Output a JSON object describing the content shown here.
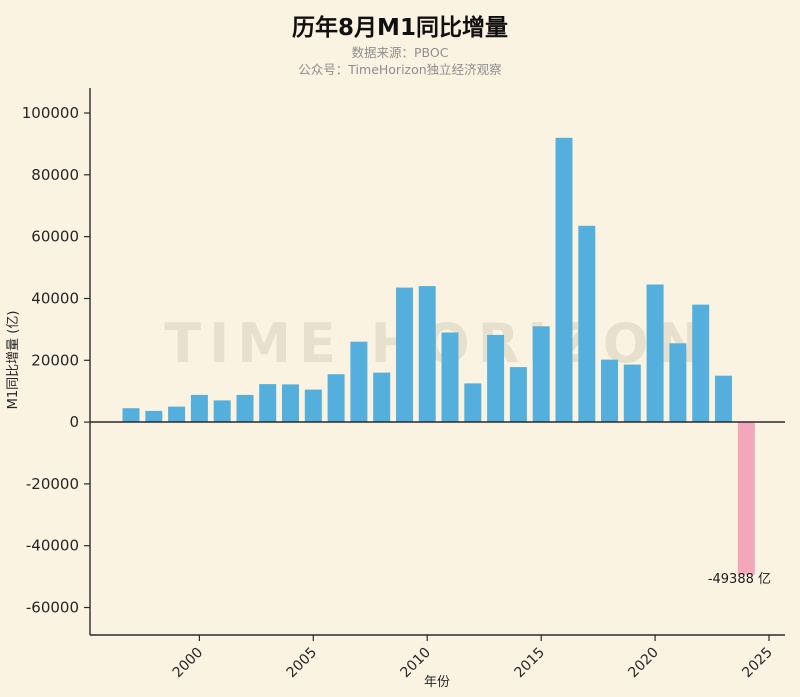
{
  "title": "历年8月M1同比增量",
  "subtitle1": "数据来源：PBOC",
  "subtitle2": "公众号：TimeHorizon独立经济观察",
  "watermark": "TIME HORIZON",
  "annotation": "-49388 亿",
  "colors": {
    "background": "#fbf3e1",
    "bar": "#54afdd",
    "highlight_bar": "#f2a7bb",
    "axis": "#2b2b2b",
    "subtitle": "#8e8e8e",
    "watermark": "#e7e0cd"
  },
  "chart_data": {
    "type": "bar",
    "title": "历年8月M1同比增量",
    "xlabel": "年份",
    "ylabel": "M1同比增量 (亿)",
    "x": [
      1997,
      1998,
      1999,
      2000,
      2001,
      2002,
      2003,
      2004,
      2005,
      2006,
      2007,
      2008,
      2009,
      2010,
      2011,
      2012,
      2013,
      2014,
      2015,
      2016,
      2017,
      2018,
      2019,
      2020,
      2021,
      2022,
      2023,
      2024
    ],
    "values": [
      4500,
      3600,
      5000,
      8800,
      7000,
      8800,
      12300,
      12200,
      10500,
      15500,
      26000,
      16000,
      43500,
      44000,
      29000,
      12500,
      28200,
      17800,
      31000,
      92000,
      63500,
      20200,
      18600,
      44500,
      25500,
      38000,
      15000,
      -49388
    ],
    "highlight_year": 2024,
    "highlight_label": "-49388 亿",
    "yticks": [
      100000,
      80000,
      60000,
      40000,
      20000,
      0,
      -20000,
      -40000,
      -60000
    ],
    "xticks": [
      2000,
      2005,
      2010,
      2015,
      2020,
      2025
    ],
    "xlim": [
      1995.2,
      2025.7
    ],
    "ylim": [
      -68900,
      108100
    ],
    "grid": false,
    "legend": "none"
  }
}
